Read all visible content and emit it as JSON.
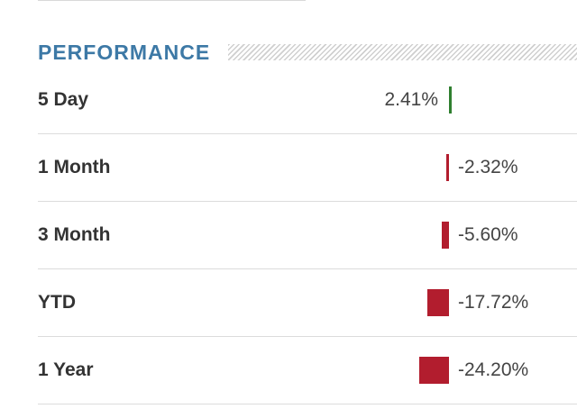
{
  "section": {
    "title": "PERFORMANCE"
  },
  "colors": {
    "title": "#3d79a6",
    "positive_bar": "#2f7f2f",
    "negative_bar": "#b21d2e"
  },
  "rows": [
    {
      "label": "5 Day",
      "value_text": "2.41%",
      "value": 2.41
    },
    {
      "label": "1 Month",
      "value_text": "-2.32%",
      "value": -2.32
    },
    {
      "label": "3 Month",
      "value_text": "-5.60%",
      "value": -5.6
    },
    {
      "label": "YTD",
      "value_text": "-17.72%",
      "value": -17.72
    },
    {
      "label": "1 Year",
      "value_text": "-24.20%",
      "value": -24.2
    }
  ]
}
